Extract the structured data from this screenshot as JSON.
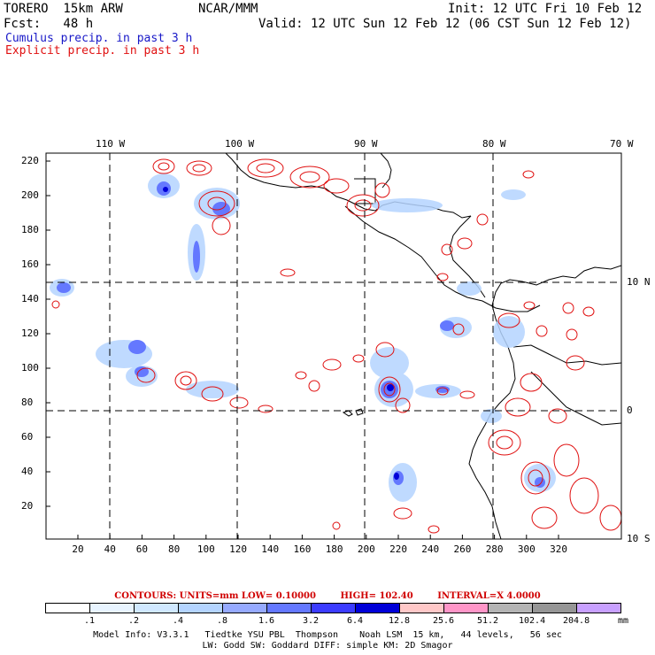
{
  "header": {
    "model": "TORERO  15km ARW",
    "org": "NCAR/MMM",
    "init": "Init: 12 UTC Fri 10 Feb 12",
    "fcst": "Fcst:   48 h",
    "valid": "Valid: 12 UTC Sun 12 Feb 12 (06 CST Sun 12 Feb 12)",
    "legend_cumulus": "Cumulus precip. in past 3 h",
    "legend_explicit": "Explicit precip. in past 3 h"
  },
  "map": {
    "lon_labels": [
      "110 W",
      "100 W",
      "90 W",
      "80 W",
      "70 W"
    ],
    "lat_labels": [
      "10 N",
      "0",
      "10 S"
    ],
    "y_ticks": [
      "220",
      "200",
      "180",
      "160",
      "140",
      "120",
      "100",
      "80",
      "60",
      "40",
      "20"
    ],
    "x_ticks": [
      "20",
      "40",
      "60",
      "80",
      "100",
      "120",
      "140",
      "160",
      "180",
      "200",
      "220",
      "240",
      "260",
      "280",
      "300",
      "320"
    ]
  },
  "contours": {
    "units": "CONTOURS:  UNITS=mm  LOW= 0.10000",
    "high": "HIGH=  102.40",
    "interval": "INTERVAL=X  4.0000"
  },
  "colorbar": {
    "labels": [
      ".1",
      ".2",
      ".4",
      ".8",
      "1.6",
      "3.2",
      "6.4",
      "12.8",
      "25.6",
      "51.2",
      "102.4",
      "204.8"
    ],
    "unit": "mm",
    "colors": [
      "#ffffff",
      "#e8f4ff",
      "#d0e8ff",
      "#b4d4ff",
      "#96aaff",
      "#6478ff",
      "#3c3cff",
      "#0000d8",
      "#ffc8c8",
      "#ff96c8",
      "#b4b4b4",
      "#969696",
      "#c8a0ff"
    ]
  },
  "footer": {
    "line1": "Model Info: V3.3.1   Tiedtke YSU PBL  Thompson    Noah LSM  15 km,   44 levels,   56 sec",
    "line2": "LW: Godd SW: Goddard DIFF: simple KM: 2D Smagor"
  }
}
